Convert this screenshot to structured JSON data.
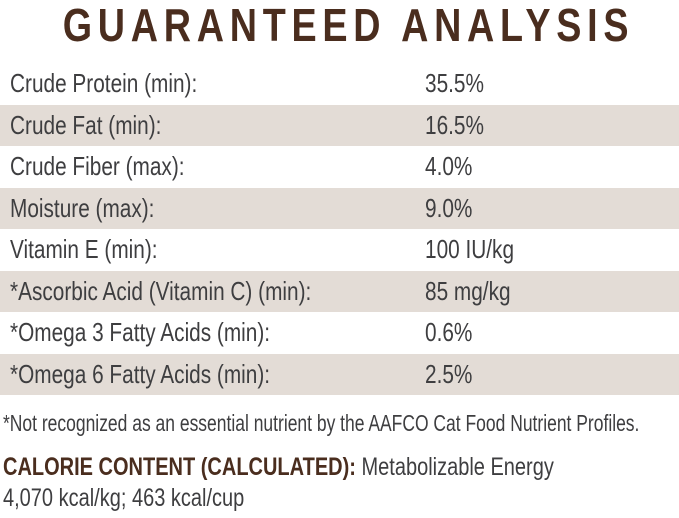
{
  "title": "GUARANTEED ANALYSIS",
  "colors": {
    "heading_brown": "#4a2d1e",
    "row_stripe": "#e3dcd6",
    "body_text": "#3e3e40",
    "background": "#ffffff"
  },
  "table": {
    "rows": [
      {
        "label": "Crude Protein (min):",
        "value": "35.5%"
      },
      {
        "label": "Crude Fat (min):",
        "value": "16.5%"
      },
      {
        "label": "Crude Fiber (max):",
        "value": "4.0%"
      },
      {
        "label": "Moisture (max):",
        "value": "9.0%"
      },
      {
        "label": "Vitamin E (min):",
        "value": "100 IU/kg"
      },
      {
        "label": "*Ascorbic Acid (Vitamin C) (min):",
        "value": "85 mg/kg"
      },
      {
        "label": "*Omega 3 Fatty Acids (min):",
        "value": "0.6%"
      },
      {
        "label": "*Omega 6 Fatty Acids (min):",
        "value": "2.5%"
      }
    ]
  },
  "footnote": "*Not recognized as an essential nutrient by the AAFCO Cat Food Nutrient Profiles.",
  "calorie": {
    "heading": "CALORIE CONTENT (CALCULATED):",
    "description": "Metabolizable Energy",
    "values": "4,070 kcal/kg; 463 kcal/cup"
  }
}
